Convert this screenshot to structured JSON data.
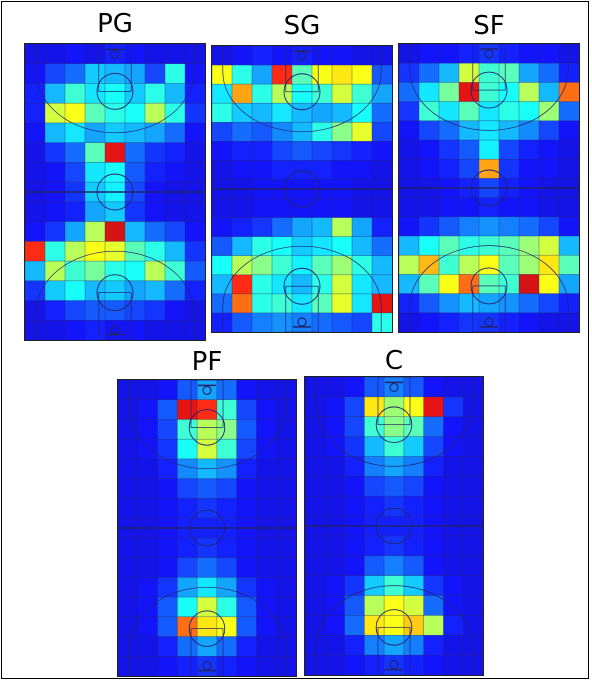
{
  "chart_data": {
    "type": "heatmap",
    "colormap": "jet",
    "grid": true,
    "columns": 9,
    "rows": 15,
    "panels": [
      {
        "title": "PG",
        "values": [
          [
            0.1,
            0.1,
            0.12,
            0.1,
            0.14,
            0.12,
            0.1,
            0.1,
            0.1
          ],
          [
            0.12,
            0.18,
            0.22,
            0.32,
            0.3,
            0.28,
            0.18,
            0.4,
            0.12
          ],
          [
            0.14,
            0.3,
            0.42,
            0.35,
            0.38,
            0.32,
            0.4,
            0.3,
            0.14
          ],
          [
            0.14,
            0.58,
            0.62,
            0.45,
            0.4,
            0.38,
            0.55,
            0.4,
            0.16
          ],
          [
            0.12,
            0.3,
            0.35,
            0.28,
            0.32,
            0.3,
            0.28,
            0.22,
            0.12
          ],
          [
            0.1,
            0.16,
            0.22,
            0.45,
            0.9,
            0.22,
            0.16,
            0.14,
            0.1
          ],
          [
            0.1,
            0.12,
            0.18,
            0.35,
            0.38,
            0.2,
            0.14,
            0.12,
            0.1
          ],
          [
            0.1,
            0.12,
            0.16,
            0.32,
            0.36,
            0.18,
            0.12,
            0.1,
            0.1
          ],
          [
            0.1,
            0.12,
            0.14,
            0.28,
            0.32,
            0.16,
            0.12,
            0.1,
            0.1
          ],
          [
            0.12,
            0.16,
            0.28,
            0.55,
            0.92,
            0.3,
            0.22,
            0.18,
            0.12
          ],
          [
            0.85,
            0.4,
            0.55,
            0.62,
            0.6,
            0.45,
            0.4,
            0.3,
            0.16
          ],
          [
            0.3,
            0.55,
            0.42,
            0.48,
            0.4,
            0.38,
            0.55,
            0.42,
            0.2
          ],
          [
            0.16,
            0.32,
            0.38,
            0.3,
            0.32,
            0.28,
            0.3,
            0.22,
            0.14
          ],
          [
            0.1,
            0.14,
            0.18,
            0.2,
            0.2,
            0.18,
            0.16,
            0.12,
            0.1
          ],
          [
            0.1,
            0.1,
            0.12,
            0.14,
            0.12,
            0.12,
            0.1,
            0.1,
            0.1
          ]
        ]
      },
      {
        "title": "SG",
        "values": [
          [
            0.1,
            0.12,
            0.14,
            0.12,
            0.14,
            0.12,
            0.12,
            0.1,
            0.1
          ],
          [
            0.62,
            0.4,
            0.28,
            0.85,
            0.45,
            0.62,
            0.65,
            0.62,
            0.2
          ],
          [
            0.35,
            0.72,
            0.4,
            0.55,
            0.38,
            0.42,
            0.58,
            0.42,
            0.28
          ],
          [
            0.4,
            0.32,
            0.3,
            0.35,
            0.3,
            0.28,
            0.3,
            0.38,
            0.22
          ],
          [
            0.18,
            0.22,
            0.2,
            0.25,
            0.3,
            0.4,
            0.5,
            0.6,
            0.18
          ],
          [
            0.12,
            0.14,
            0.14,
            0.18,
            0.2,
            0.18,
            0.16,
            0.14,
            0.12
          ],
          [
            0.1,
            0.12,
            0.12,
            0.14,
            0.14,
            0.14,
            0.12,
            0.12,
            0.1
          ],
          [
            0.1,
            0.1,
            0.12,
            0.12,
            0.12,
            0.12,
            0.12,
            0.1,
            0.1
          ],
          [
            0.1,
            0.1,
            0.12,
            0.12,
            0.12,
            0.12,
            0.12,
            0.1,
            0.1
          ],
          [
            0.12,
            0.14,
            0.16,
            0.22,
            0.28,
            0.3,
            0.55,
            0.28,
            0.14
          ],
          [
            0.2,
            0.3,
            0.4,
            0.38,
            0.32,
            0.35,
            0.38,
            0.3,
            0.22
          ],
          [
            0.38,
            0.55,
            0.5,
            0.42,
            0.36,
            0.45,
            0.52,
            0.4,
            0.3
          ],
          [
            0.3,
            0.85,
            0.4,
            0.35,
            0.3,
            0.4,
            0.58,
            0.35,
            0.3
          ],
          [
            0.22,
            0.78,
            0.4,
            0.42,
            0.35,
            0.45,
            0.6,
            0.35,
            0.9
          ],
          [
            0.14,
            0.2,
            0.24,
            0.26,
            0.24,
            0.22,
            0.2,
            0.18,
            0.4
          ]
        ]
      },
      {
        "title": "SF",
        "values": [
          [
            0.1,
            0.12,
            0.12,
            0.14,
            0.16,
            0.14,
            0.12,
            0.12,
            0.1
          ],
          [
            0.16,
            0.22,
            0.3,
            0.58,
            0.42,
            0.45,
            0.28,
            0.22,
            0.14
          ],
          [
            0.22,
            0.35,
            0.48,
            0.9,
            0.42,
            0.38,
            0.55,
            0.3,
            0.78
          ],
          [
            0.16,
            0.42,
            0.35,
            0.45,
            0.35,
            0.4,
            0.38,
            0.52,
            0.22
          ],
          [
            0.12,
            0.18,
            0.22,
            0.3,
            0.35,
            0.3,
            0.25,
            0.18,
            0.12
          ],
          [
            0.1,
            0.12,
            0.16,
            0.2,
            0.36,
            0.18,
            0.14,
            0.12,
            0.1
          ],
          [
            0.1,
            0.12,
            0.14,
            0.18,
            0.72,
            0.16,
            0.12,
            0.12,
            0.1
          ],
          [
            0.1,
            0.1,
            0.12,
            0.14,
            0.18,
            0.14,
            0.12,
            0.1,
            0.1
          ],
          [
            0.1,
            0.1,
            0.12,
            0.12,
            0.14,
            0.12,
            0.12,
            0.1,
            0.1
          ],
          [
            0.12,
            0.16,
            0.2,
            0.24,
            0.26,
            0.24,
            0.22,
            0.18,
            0.12
          ],
          [
            0.3,
            0.38,
            0.45,
            0.4,
            0.42,
            0.45,
            0.52,
            0.58,
            0.3
          ],
          [
            0.55,
            0.7,
            0.42,
            0.55,
            0.62,
            0.45,
            0.52,
            0.65,
            0.45
          ],
          [
            0.3,
            0.45,
            0.62,
            0.78,
            0.45,
            0.42,
            0.92,
            0.62,
            0.28
          ],
          [
            0.14,
            0.2,
            0.26,
            0.3,
            0.28,
            0.26,
            0.22,
            0.18,
            0.14
          ],
          [
            0.1,
            0.12,
            0.14,
            0.16,
            0.16,
            0.14,
            0.12,
            0.1,
            0.1
          ]
        ]
      },
      {
        "title": "PF",
        "values": [
          [
            0.1,
            0.1,
            0.12,
            0.2,
            0.28,
            0.22,
            0.12,
            0.1,
            0.1
          ],
          [
            0.1,
            0.12,
            0.2,
            0.9,
            0.85,
            0.42,
            0.18,
            0.12,
            0.1
          ],
          [
            0.1,
            0.12,
            0.18,
            0.42,
            0.55,
            0.5,
            0.2,
            0.12,
            0.1
          ],
          [
            0.1,
            0.12,
            0.16,
            0.38,
            0.58,
            0.42,
            0.18,
            0.12,
            0.1
          ],
          [
            0.1,
            0.1,
            0.14,
            0.25,
            0.3,
            0.26,
            0.14,
            0.1,
            0.1
          ],
          [
            0.1,
            0.1,
            0.12,
            0.18,
            0.2,
            0.18,
            0.12,
            0.1,
            0.1
          ],
          [
            0.1,
            0.1,
            0.12,
            0.14,
            0.16,
            0.14,
            0.12,
            0.1,
            0.1
          ],
          [
            0.1,
            0.1,
            0.12,
            0.14,
            0.14,
            0.14,
            0.12,
            0.1,
            0.1
          ],
          [
            0.1,
            0.1,
            0.12,
            0.14,
            0.16,
            0.14,
            0.12,
            0.1,
            0.1
          ],
          [
            0.1,
            0.1,
            0.12,
            0.18,
            0.22,
            0.18,
            0.12,
            0.1,
            0.1
          ],
          [
            0.1,
            0.12,
            0.16,
            0.28,
            0.35,
            0.28,
            0.16,
            0.12,
            0.1
          ],
          [
            0.1,
            0.12,
            0.2,
            0.38,
            0.58,
            0.4,
            0.2,
            0.12,
            0.1
          ],
          [
            0.1,
            0.12,
            0.2,
            0.78,
            0.65,
            0.62,
            0.2,
            0.12,
            0.1
          ],
          [
            0.1,
            0.1,
            0.14,
            0.22,
            0.28,
            0.22,
            0.14,
            0.1,
            0.1
          ],
          [
            0.1,
            0.1,
            0.12,
            0.14,
            0.16,
            0.14,
            0.12,
            0.1,
            0.1
          ]
        ]
      },
      {
        "title": "C",
        "values": [
          [
            0.1,
            0.1,
            0.12,
            0.2,
            0.24,
            0.2,
            0.12,
            0.1,
            0.1
          ],
          [
            0.1,
            0.12,
            0.18,
            0.65,
            0.52,
            0.62,
            0.9,
            0.16,
            0.1
          ],
          [
            0.1,
            0.12,
            0.18,
            0.42,
            0.5,
            0.45,
            0.22,
            0.12,
            0.1
          ],
          [
            0.1,
            0.12,
            0.16,
            0.3,
            0.42,
            0.32,
            0.18,
            0.12,
            0.1
          ],
          [
            0.1,
            0.1,
            0.14,
            0.24,
            0.28,
            0.24,
            0.14,
            0.1,
            0.1
          ],
          [
            0.1,
            0.1,
            0.12,
            0.18,
            0.2,
            0.18,
            0.12,
            0.1,
            0.1
          ],
          [
            0.1,
            0.1,
            0.12,
            0.14,
            0.16,
            0.14,
            0.12,
            0.1,
            0.1
          ],
          [
            0.1,
            0.1,
            0.12,
            0.14,
            0.14,
            0.14,
            0.12,
            0.1,
            0.1
          ],
          [
            0.1,
            0.1,
            0.12,
            0.14,
            0.16,
            0.14,
            0.12,
            0.1,
            0.1
          ],
          [
            0.1,
            0.1,
            0.12,
            0.2,
            0.24,
            0.2,
            0.12,
            0.1,
            0.1
          ],
          [
            0.1,
            0.12,
            0.16,
            0.32,
            0.42,
            0.32,
            0.16,
            0.12,
            0.1
          ],
          [
            0.1,
            0.12,
            0.2,
            0.55,
            0.62,
            0.58,
            0.22,
            0.12,
            0.1
          ],
          [
            0.1,
            0.12,
            0.22,
            0.65,
            0.62,
            0.68,
            0.55,
            0.14,
            0.1
          ],
          [
            0.1,
            0.1,
            0.14,
            0.24,
            0.28,
            0.24,
            0.14,
            0.1,
            0.1
          ],
          [
            0.1,
            0.1,
            0.12,
            0.14,
            0.16,
            0.14,
            0.12,
            0.1,
            0.1
          ]
        ]
      }
    ]
  }
}
